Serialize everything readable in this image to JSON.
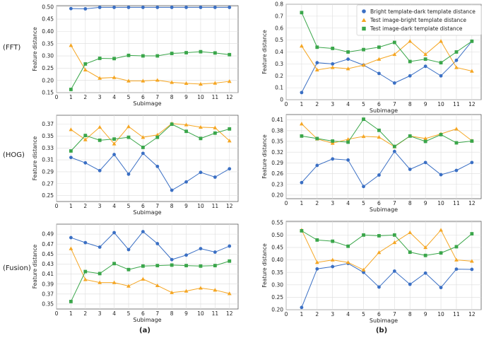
{
  "figure": {
    "row_labels": [
      "(FFT)",
      "(HOG)",
      "(Fusion)"
    ],
    "column_labels": [
      "(a)",
      "(b)"
    ]
  },
  "legend": [
    {
      "name": "Bright template-dark template distance",
      "color": "#3a6fc4",
      "marker": "circle"
    },
    {
      "name": "Test image-bright template distance",
      "color": "#f5a623",
      "marker": "triangle"
    },
    {
      "name": "Test image-dark template distance",
      "color": "#3aa64a",
      "marker": "square"
    }
  ],
  "chart_data": [
    {
      "id": "fft-a",
      "type": "line",
      "xlabel": "Subimage",
      "ylabel": "Feature distance",
      "x": [
        1,
        2,
        3,
        4,
        5,
        6,
        7,
        8,
        9,
        10,
        11,
        12
      ],
      "xlim": [
        0,
        12.6
      ],
      "xticks": [
        0,
        1,
        2,
        3,
        4,
        5,
        6,
        7,
        8,
        9,
        10,
        11,
        12
      ],
      "ylim": [
        0.15,
        0.505
      ],
      "yticks": [
        "0.15",
        "0.20",
        "0.25",
        "0.30",
        "0.35",
        "0.40",
        "0.45",
        "0.50"
      ],
      "series": [
        {
          "name": "Bright template-dark template distance",
          "values": [
            0.493,
            0.492,
            0.498,
            0.498,
            0.498,
            0.498,
            0.498,
            0.498,
            0.498,
            0.498,
            0.498,
            0.498
          ]
        },
        {
          "name": "Test image-bright template distance",
          "values": [
            0.343,
            0.243,
            0.209,
            0.212,
            0.198,
            0.198,
            0.201,
            0.192,
            0.188,
            0.185,
            0.189,
            0.196
          ]
        },
        {
          "name": "Test image-dark template distance",
          "values": [
            0.163,
            0.267,
            0.29,
            0.289,
            0.302,
            0.3,
            0.3,
            0.31,
            0.313,
            0.317,
            0.312,
            0.305
          ]
        }
      ]
    },
    {
      "id": "fft-b",
      "type": "line",
      "xlabel": "Subimage",
      "ylabel": "Feature distance",
      "x": [
        1,
        2,
        3,
        4,
        5,
        6,
        7,
        8,
        9,
        10,
        11,
        12
      ],
      "xlim": [
        0,
        12.6
      ],
      "xticks": [
        0,
        1,
        2,
        3,
        4,
        5,
        6,
        7,
        8,
        9,
        10,
        11,
        12
      ],
      "ylim": [
        0.0,
        0.8
      ],
      "yticks": [
        "0",
        "0.1",
        "0.2",
        "0.3",
        "0.4",
        "0.5",
        "0.6",
        "0.7",
        "0.8"
      ],
      "series": [
        {
          "name": "Bright template-dark template distance",
          "values": [
            0.06,
            0.31,
            0.3,
            0.34,
            0.29,
            0.22,
            0.14,
            0.2,
            0.28,
            0.2,
            0.33,
            0.49
          ]
        },
        {
          "name": "Test image-bright template distance",
          "values": [
            0.45,
            0.25,
            0.27,
            0.26,
            0.29,
            0.34,
            0.38,
            0.49,
            0.38,
            0.49,
            0.27,
            0.24
          ]
        },
        {
          "name": "Test image-dark template distance",
          "values": [
            0.73,
            0.44,
            0.43,
            0.4,
            0.42,
            0.44,
            0.48,
            0.32,
            0.34,
            0.31,
            0.4,
            0.49
          ]
        }
      ]
    },
    {
      "id": "hog-a",
      "type": "line",
      "xlabel": "Subimage",
      "ylabel": "Feature distance",
      "x": [
        1,
        2,
        3,
        4,
        5,
        6,
        7,
        8,
        9,
        10,
        11,
        12
      ],
      "xlim": [
        0,
        12.6
      ],
      "xticks": [
        0,
        1,
        2,
        3,
        4,
        5,
        6,
        7,
        8,
        9,
        10,
        11,
        12
      ],
      "ylim": [
        0.24,
        0.385
      ],
      "yticks": [
        "0.25",
        "0.27",
        "0.29",
        "0.31",
        "0.33",
        "0.35",
        "0.37"
      ],
      "series": [
        {
          "name": "Bright template-dark template distance",
          "values": [
            0.314,
            0.305,
            0.292,
            0.319,
            0.286,
            0.321,
            0.299,
            0.259,
            0.273,
            0.289,
            0.281,
            0.295
          ]
        },
        {
          "name": "Test image-bright template distance",
          "values": [
            0.361,
            0.344,
            0.365,
            0.337,
            0.366,
            0.348,
            0.352,
            0.371,
            0.369,
            0.365,
            0.364,
            0.342
          ]
        },
        {
          "name": "Test image-dark template distance",
          "values": [
            0.325,
            0.351,
            0.343,
            0.345,
            0.348,
            0.331,
            0.348,
            0.37,
            0.358,
            0.346,
            0.355,
            0.362
          ]
        }
      ]
    },
    {
      "id": "hog-b",
      "type": "line",
      "xlabel": "Subimage",
      "ylabel": "Feature distance",
      "x": [
        1,
        2,
        3,
        4,
        5,
        6,
        7,
        8,
        9,
        10,
        11,
        12
      ],
      "xlim": [
        0,
        12.6
      ],
      "xticks": [
        0,
        1,
        2,
        3,
        4,
        5,
        6,
        7,
        8,
        9,
        10,
        11,
        12
      ],
      "ylim": [
        0.19,
        0.425
      ],
      "yticks": [
        "0.20",
        "0.23",
        "0.26",
        "0.29",
        "0.32",
        "0.35",
        "0.38",
        "0.41"
      ],
      "series": [
        {
          "name": "Bright template-dark template distance",
          "values": [
            0.235,
            0.283,
            0.301,
            0.298,
            0.224,
            0.256,
            0.322,
            0.272,
            0.291,
            0.257,
            0.269,
            0.291
          ]
        },
        {
          "name": "Test image-bright template distance",
          "values": [
            0.399,
            0.357,
            0.345,
            0.356,
            0.364,
            0.362,
            0.335,
            0.365,
            0.358,
            0.371,
            0.385,
            0.352
          ]
        },
        {
          "name": "Test image-dark template distance",
          "values": [
            0.365,
            0.358,
            0.351,
            0.348,
            0.412,
            0.381,
            0.336,
            0.365,
            0.35,
            0.369,
            0.346,
            0.351
          ]
        }
      ]
    },
    {
      "id": "fusion-a",
      "type": "line",
      "xlabel": "Subimage",
      "ylabel": "Feature distance",
      "x": [
        1,
        2,
        3,
        4,
        5,
        6,
        7,
        8,
        9,
        10,
        11,
        12
      ],
      "xlim": [
        0,
        12.6
      ],
      "xticks": [
        0,
        1,
        2,
        3,
        4,
        5,
        6,
        7,
        8,
        9,
        10,
        11,
        12
      ],
      "ylim": [
        0.34,
        0.51
      ],
      "yticks": [
        "0.35",
        "0.37",
        "0.39",
        "0.41",
        "0.43",
        "0.45",
        "0.47",
        "0.49"
      ],
      "series": [
        {
          "name": "Bright template-dark template distance",
          "values": [
            0.483,
            0.473,
            0.464,
            0.493,
            0.459,
            0.495,
            0.471,
            0.439,
            0.448,
            0.461,
            0.454,
            0.466
          ]
        },
        {
          "name": "Test image-bright template distance",
          "values": [
            0.461,
            0.399,
            0.393,
            0.393,
            0.386,
            0.4,
            0.387,
            0.373,
            0.376,
            0.382,
            0.378,
            0.371
          ]
        },
        {
          "name": "Test image-dark template distance",
          "values": [
            0.355,
            0.415,
            0.411,
            0.431,
            0.419,
            0.426,
            0.427,
            0.428,
            0.427,
            0.426,
            0.427,
            0.436
          ]
        }
      ]
    },
    {
      "id": "fusion-b",
      "type": "line",
      "xlabel": "Subimage",
      "ylabel": "Feature distance",
      "x": [
        1,
        2,
        3,
        4,
        5,
        6,
        7,
        8,
        9,
        10,
        11,
        12
      ],
      "xlim": [
        0,
        12.6
      ],
      "xticks": [
        0,
        1,
        2,
        3,
        4,
        5,
        6,
        7,
        8,
        9,
        10,
        11,
        12
      ],
      "ylim": [
        0.2,
        0.555
      ],
      "yticks": [
        "0.20",
        "0.25",
        "0.30",
        "0.35",
        "0.40",
        "0.45",
        "0.50",
        "0.55"
      ],
      "series": [
        {
          "name": "Bright template-dark template distance",
          "values": [
            0.209,
            0.364,
            0.373,
            0.386,
            0.35,
            0.291,
            0.355,
            0.302,
            0.347,
            0.289,
            0.363,
            0.362
          ]
        },
        {
          "name": "Test image-bright template distance",
          "values": [
            0.52,
            0.39,
            0.4,
            0.39,
            0.36,
            0.43,
            0.47,
            0.51,
            0.45,
            0.52,
            0.4,
            0.395
          ]
        },
        {
          "name": "Test image-dark template distance",
          "values": [
            0.517,
            0.48,
            0.475,
            0.455,
            0.5,
            0.497,
            0.5,
            0.431,
            0.418,
            0.428,
            0.453,
            0.505
          ]
        }
      ]
    }
  ]
}
